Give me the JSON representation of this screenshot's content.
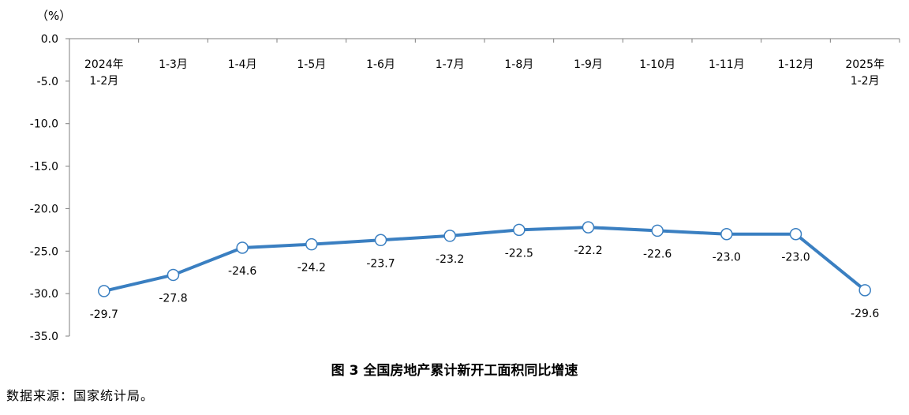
{
  "unit_label": "（%）",
  "caption": "图 3    全国房地产累计新开工面积同比增速",
  "source": "数据来源：国家统计局。",
  "chart_data": {
    "type": "line",
    "categories": [
      "2024年\n1-2月",
      "1-3月",
      "1-4月",
      "1-5月",
      "1-6月",
      "1-7月",
      "1-8月",
      "1-9月",
      "1-10月",
      "1-11月",
      "1-12月",
      "2025年\n1-2月"
    ],
    "series": [
      {
        "values": [
          -29.7,
          -27.8,
          -24.6,
          -24.2,
          -23.7,
          -23.2,
          -22.5,
          -22.2,
          -22.6,
          -23.0,
          -23.0,
          -29.6
        ]
      }
    ],
    "data_labels": [
      "-29.7",
      "-27.8",
      "-24.6",
      "-24.2",
      "-23.7",
      "-23.2",
      "-22.5",
      "-22.2",
      "-22.6",
      "-23.0",
      "-23.0",
      "-29.6"
    ],
    "y_ticks": [
      "0.0",
      "-5.0",
      "-10.0",
      "-15.0",
      "-20.0",
      "-25.0",
      "-30.0",
      "-35.0"
    ],
    "ylim": [
      -35,
      0
    ],
    "x_axis_position": "top",
    "grid": false,
    "colors": {
      "line": "#3a7fc1",
      "marker_fill": "#ffffff",
      "axis": "#7f7f7f"
    }
  }
}
